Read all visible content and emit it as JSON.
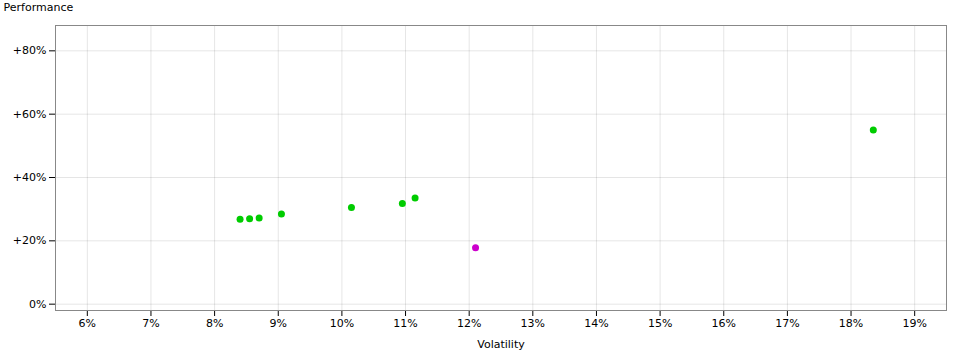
{
  "chart_data": {
    "type": "scatter",
    "xlabel": "Volatility",
    "ylabel": "Performance",
    "xlim": [
      0.055,
      0.195
    ],
    "ylim": [
      -0.02,
      0.88
    ],
    "xticks": [
      {
        "value": 0.06,
        "label": "6%"
      },
      {
        "value": 0.07,
        "label": "7%"
      },
      {
        "value": 0.08,
        "label": "8%"
      },
      {
        "value": 0.09,
        "label": "9%"
      },
      {
        "value": 0.1,
        "label": "10%"
      },
      {
        "value": 0.11,
        "label": "11%"
      },
      {
        "value": 0.12,
        "label": "12%"
      },
      {
        "value": 0.13,
        "label": "13%"
      },
      {
        "value": 0.14,
        "label": "14%"
      },
      {
        "value": 0.15,
        "label": "15%"
      },
      {
        "value": 0.16,
        "label": "16%"
      },
      {
        "value": 0.17,
        "label": "17%"
      },
      {
        "value": 0.18,
        "label": "18%"
      },
      {
        "value": 0.19,
        "label": "19%"
      }
    ],
    "yticks": [
      {
        "value": 0.0,
        "label": "0%"
      },
      {
        "value": 0.2,
        "label": "+20%"
      },
      {
        "value": 0.4,
        "label": "+40%"
      },
      {
        "value": 0.6,
        "label": "+60%"
      },
      {
        "value": 0.8,
        "label": "+80%"
      }
    ],
    "grid": true,
    "series": [
      {
        "color": "#00cc00",
        "x": [
          0.084,
          0.0855,
          0.087,
          0.0905,
          0.1015,
          0.1095,
          0.1115,
          0.1835
        ],
        "values": [
          0.268,
          0.27,
          0.272,
          0.285,
          0.305,
          0.318,
          0.335,
          0.55
        ]
      },
      {
        "color": "#cc00cc",
        "x": [
          0.121
        ],
        "values": [
          0.178
        ]
      }
    ]
  }
}
